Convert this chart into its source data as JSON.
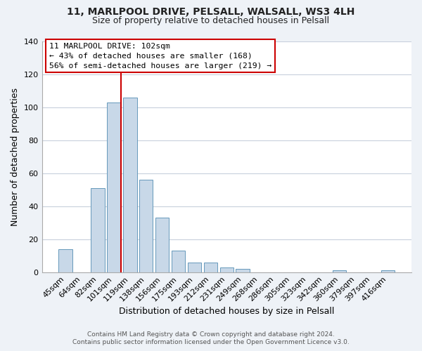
{
  "title1": "11, MARLPOOL DRIVE, PELSALL, WALSALL, WS3 4LH",
  "title2": "Size of property relative to detached houses in Pelsall",
  "xlabel": "Distribution of detached houses by size in Pelsall",
  "ylabel": "Number of detached properties",
  "bar_labels": [
    "45sqm",
    "64sqm",
    "82sqm",
    "101sqm",
    "119sqm",
    "138sqm",
    "156sqm",
    "175sqm",
    "193sqm",
    "212sqm",
    "231sqm",
    "249sqm",
    "268sqm",
    "286sqm",
    "305sqm",
    "323sqm",
    "342sqm",
    "360sqm",
    "379sqm",
    "397sqm",
    "416sqm"
  ],
  "bar_values": [
    14,
    0,
    51,
    103,
    106,
    56,
    33,
    13,
    6,
    6,
    3,
    2,
    0,
    0,
    0,
    0,
    0,
    1,
    0,
    0,
    1
  ],
  "bar_color": "#c8d8e8",
  "bar_edge_color": "#6699bb",
  "ylim": [
    0,
    140
  ],
  "yticks": [
    0,
    20,
    40,
    60,
    80,
    100,
    120,
    140
  ],
  "vline_color": "#cc0000",
  "annotation_title": "11 MARLPOOL DRIVE: 102sqm",
  "annotation_line1": "← 43% of detached houses are smaller (168)",
  "annotation_line2": "56% of semi-detached houses are larger (219) →",
  "footer1": "Contains HM Land Registry data © Crown copyright and database right 2024.",
  "footer2": "Contains public sector information licensed under the Open Government Licence v3.0.",
  "background_color": "#eef2f7",
  "plot_background_color": "#ffffff",
  "grid_color": "#c8d0dc"
}
